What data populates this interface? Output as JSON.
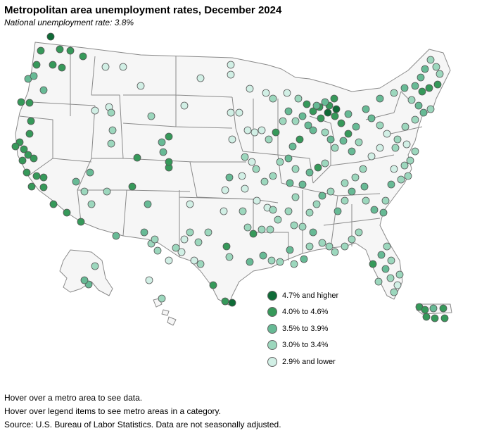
{
  "title": "Metropolitan area unemployment rates, December 2024",
  "subtitle": "National unemployment rate: 3.8%",
  "legend": [
    {
      "label": "4.7% and higher",
      "color": "#0f6b37"
    },
    {
      "label": "4.0% to 4.6%",
      "color": "#36995a"
    },
    {
      "label": "3.5% to 3.9%",
      "color": "#67ba95"
    },
    {
      "label": "3.0% to 3.4%",
      "color": "#9cd7bd"
    },
    {
      "label": "2.9% and lower",
      "color": "#d1efe5"
    }
  ],
  "notes": {
    "hover_metro": "Hover over a metro area to see data.",
    "hover_legend": "Hover over legend items to see metro areas in a category.",
    "source": "Source: U.S. Bureau of Labor Statistics. Data are not seasonally adjusted."
  }
}
